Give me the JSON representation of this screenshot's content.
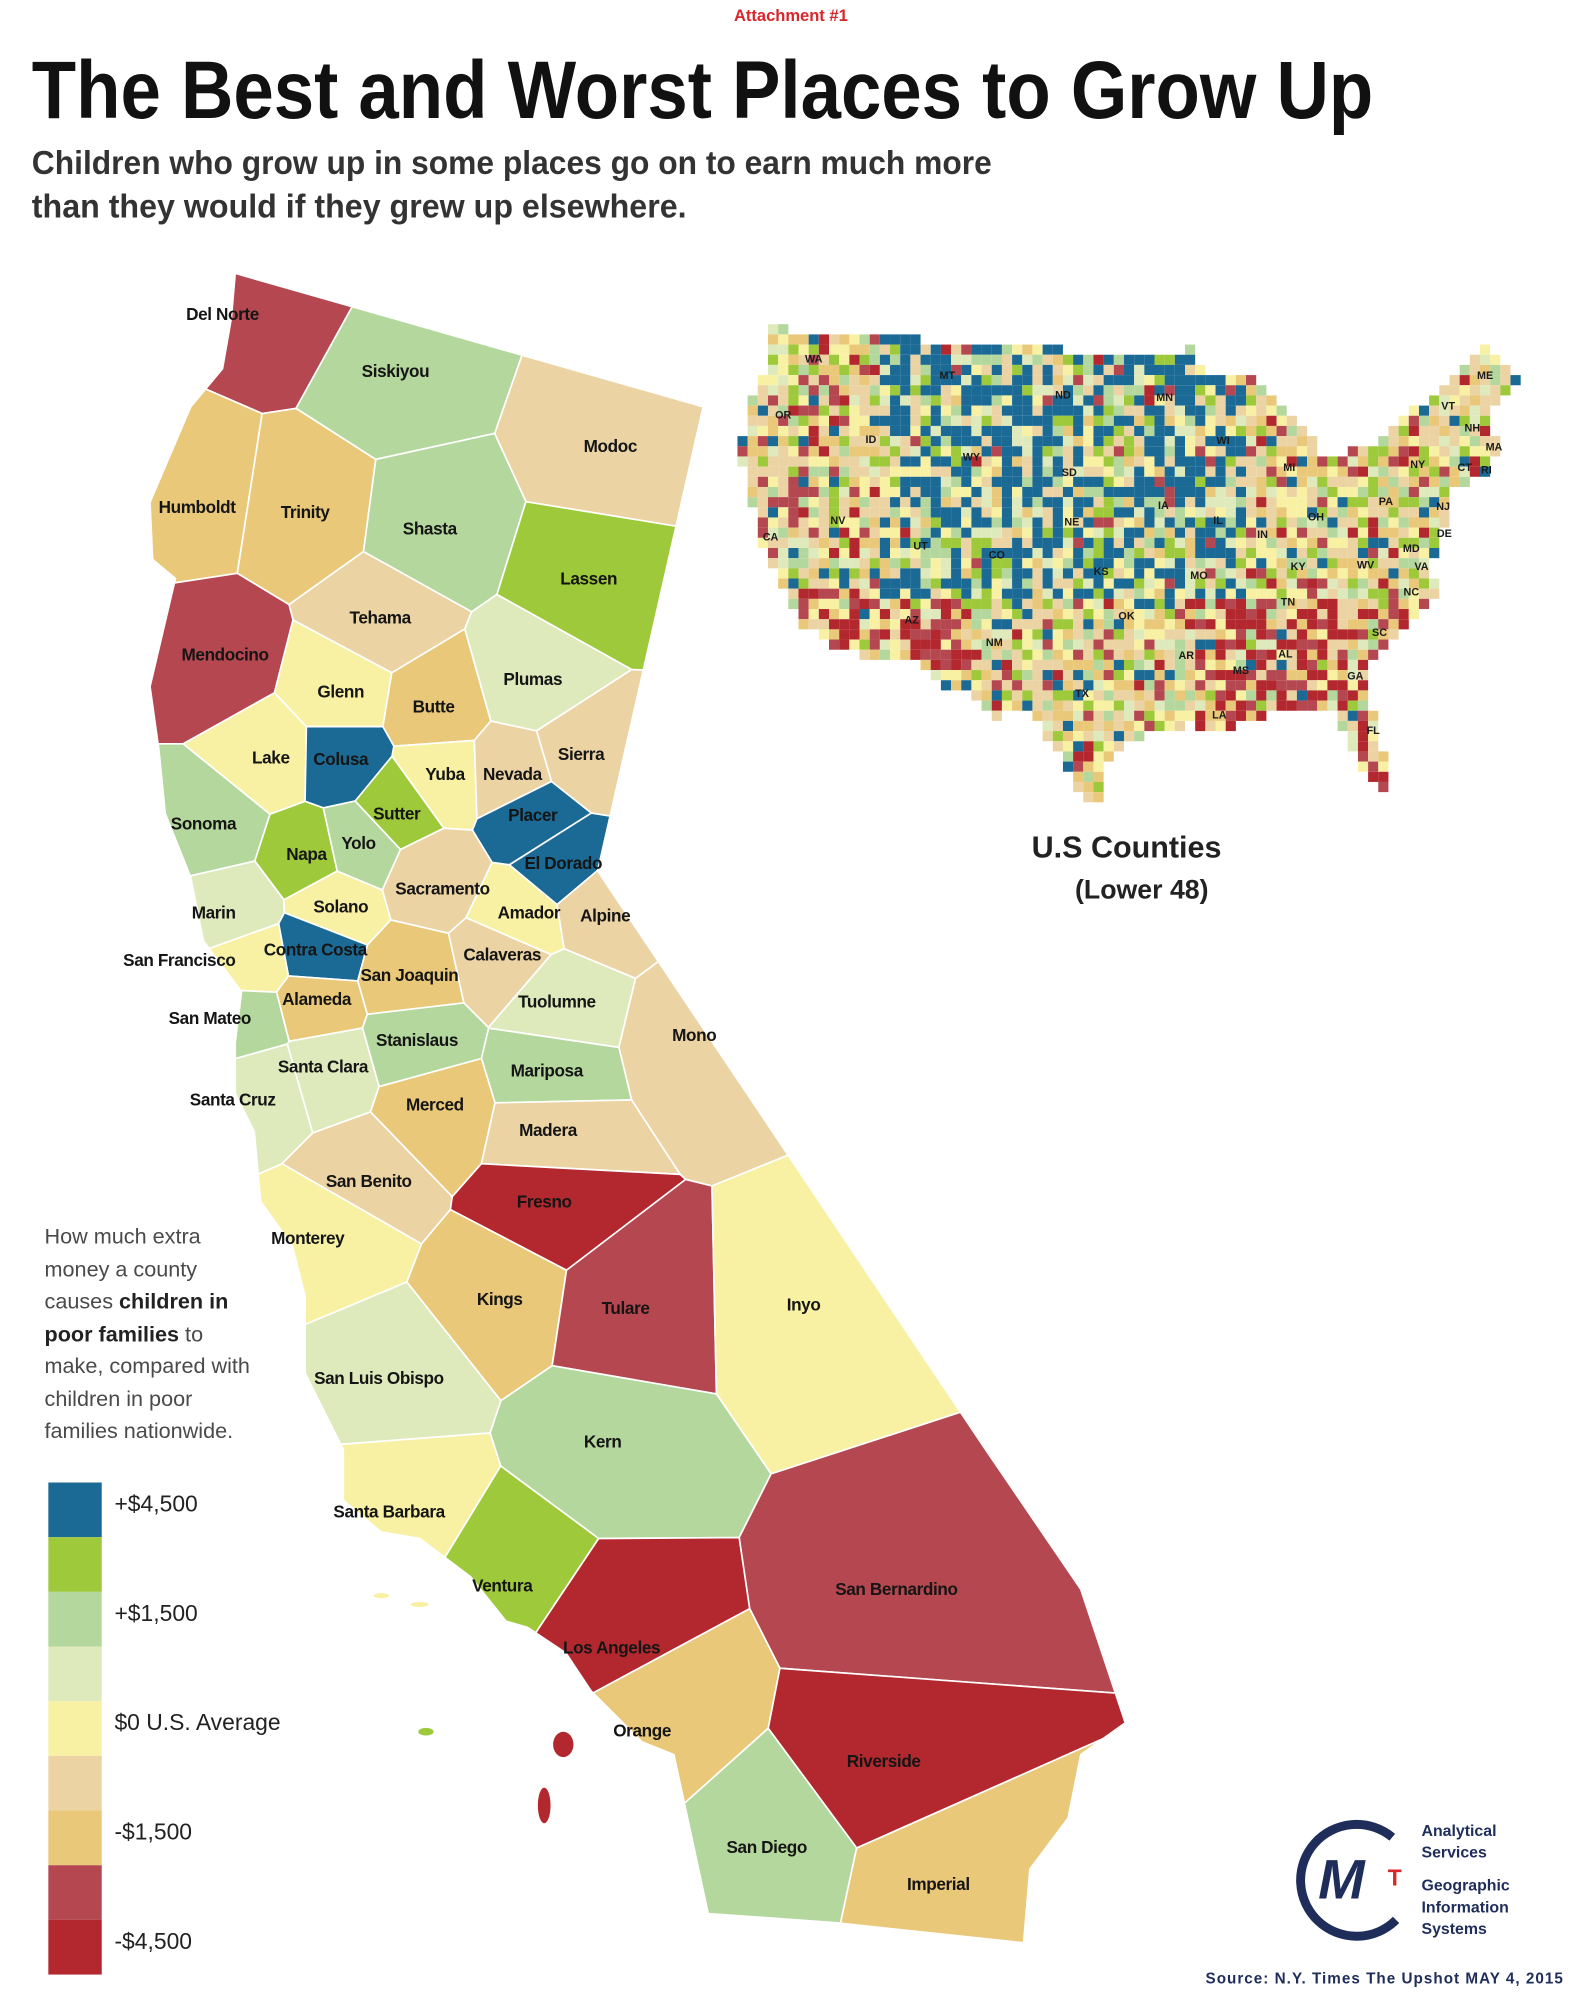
{
  "header": {
    "attachment": "Attachment #1",
    "title": "The Best and Worst Places to Grow Up",
    "subtitle": [
      "Children who grow up in some places go on to earn much more",
      "than they would if they grew up elsewhere."
    ]
  },
  "california": {
    "counties": [
      {
        "name": "Del Norte",
        "color": "#b4474f"
      },
      {
        "name": "Siskiyou",
        "color": "#b4d79d"
      },
      {
        "name": "Modoc",
        "color": "#ebd3a3"
      },
      {
        "name": "Humboldt",
        "color": "#eac879"
      },
      {
        "name": "Trinity",
        "color": "#eac879"
      },
      {
        "name": "Shasta",
        "color": "#b4d79d"
      },
      {
        "name": "Lassen",
        "color": "#9dc93b"
      },
      {
        "name": "Tehama",
        "color": "#ebd3a3"
      },
      {
        "name": "Mendocino",
        "color": "#b4474f"
      },
      {
        "name": "Plumas",
        "color": "#dfeabc"
      },
      {
        "name": "Glenn",
        "color": "#f8f1a3"
      },
      {
        "name": "Butte",
        "color": "#eac879"
      },
      {
        "name": "Lake",
        "color": "#f8f1a3"
      },
      {
        "name": "Colusa",
        "color": "#1b6a95"
      },
      {
        "name": "Sierra",
        "color": "#ebd3a3"
      },
      {
        "name": "Yuba",
        "color": "#f8f1a3"
      },
      {
        "name": "Nevada",
        "color": "#ebd3a3"
      },
      {
        "name": "Sutter",
        "color": "#9dc93b"
      },
      {
        "name": "Placer",
        "color": "#1b6a95"
      },
      {
        "name": "Sonoma",
        "color": "#b4d79d"
      },
      {
        "name": "Yolo",
        "color": "#b4d79d"
      },
      {
        "name": "Napa",
        "color": "#9dc93b"
      },
      {
        "name": "El Dorado",
        "color": "#1b6a95"
      },
      {
        "name": "Sacramento",
        "color": "#ebd3a3"
      },
      {
        "name": "Marin",
        "color": "#dfeabc"
      },
      {
        "name": "Solano",
        "color": "#f8f1a3"
      },
      {
        "name": "Amador",
        "color": "#f8f1a3"
      },
      {
        "name": "Alpine",
        "color": "#ebd3a3"
      },
      {
        "name": "Contra Costa",
        "color": "#1b6a95"
      },
      {
        "name": "San Francisco",
        "color": "#f8f1a3"
      },
      {
        "name": "San Joaquin",
        "color": "#eac879"
      },
      {
        "name": "Calaveras",
        "color": "#ebd3a3"
      },
      {
        "name": "Alameda",
        "color": "#eac879"
      },
      {
        "name": "San Mateo",
        "color": "#b4d79d"
      },
      {
        "name": "Tuolumne",
        "color": "#dfeabc"
      },
      {
        "name": "Stanislaus",
        "color": "#b4d79d"
      },
      {
        "name": "Mono",
        "color": "#ebd3a3"
      },
      {
        "name": "Santa Clara",
        "color": "#dfeabc"
      },
      {
        "name": "Mariposa",
        "color": "#b4d79d"
      },
      {
        "name": "Santa Cruz",
        "color": "#dfeabc"
      },
      {
        "name": "Merced",
        "color": "#eac879"
      },
      {
        "name": "Madera",
        "color": "#ebd3a3"
      },
      {
        "name": "San Benito",
        "color": "#ebd3a3"
      },
      {
        "name": "Fresno",
        "color": "#b3282e"
      },
      {
        "name": "Monterey",
        "color": "#f8f1a3"
      },
      {
        "name": "Kings",
        "color": "#eac879"
      },
      {
        "name": "Tulare",
        "color": "#b4474f"
      },
      {
        "name": "Inyo",
        "color": "#f8f1a3"
      },
      {
        "name": "San Luis Obispo",
        "color": "#dfeabc"
      },
      {
        "name": "Kern",
        "color": "#b4d79d"
      },
      {
        "name": "Santa Barbara",
        "color": "#f8f1a3"
      },
      {
        "name": "Ventura",
        "color": "#9dc93b"
      },
      {
        "name": "San Bernardino",
        "color": "#b4474f"
      },
      {
        "name": "Los Angeles",
        "color": "#b3282e"
      },
      {
        "name": "Orange",
        "color": "#eac879"
      },
      {
        "name": "Riverside",
        "color": "#b3282e"
      },
      {
        "name": "San Diego",
        "color": "#b4d79d"
      },
      {
        "name": "Imperial",
        "color": "#eac879"
      }
    ]
  },
  "inset": {
    "title": "U.S Counties",
    "subtitle": "(Lower 48)",
    "states": [
      "WA",
      "MT",
      "ND",
      "MN",
      "ME",
      "OR",
      "ID",
      "WY",
      "SD",
      "WI",
      "VT",
      "NH",
      "MA",
      "NY",
      "CT",
      "RI",
      "MI",
      "PA",
      "NJ",
      "DE",
      "MD",
      "IA",
      "NE",
      "NV",
      "IL",
      "IN",
      "OH",
      "CA",
      "UT",
      "CO",
      "KS",
      "MO",
      "WV",
      "VA",
      "KY",
      "NC",
      "TN",
      "AZ",
      "OK",
      "NM",
      "AR",
      "MS",
      "AL",
      "SC",
      "GA",
      "TX",
      "LA",
      "FL"
    ]
  },
  "legend": {
    "description": [
      "How much extra money a county causes ",
      "children in poor families",
      " to make, compared with children in poor families nationwide."
    ],
    "items": [
      {
        "label": "+$4,500",
        "color": "#1b6a95"
      },
      {
        "label": null,
        "color": "#9dc93b"
      },
      {
        "label": "+$1,500",
        "color": "#b4d79d"
      },
      {
        "label": null,
        "color": "#dfeabc"
      },
      {
        "label": "$0 U.S. Average",
        "color": "#f8f1a3"
      },
      {
        "label": null,
        "color": "#ebd3a3"
      },
      {
        "label": "-$1,500",
        "color": "#eac879"
      },
      {
        "label": null,
        "color": "#b4474f"
      },
      {
        "label": "-$4,500",
        "color": "#b3282e"
      }
    ]
  },
  "logo": {
    "mark": "M",
    "accent": "T",
    "lines": [
      "Analytical",
      "Services",
      "Geographic",
      "Information",
      "Systems"
    ]
  },
  "source": "Source: N.Y. Times The Upshot MAY 4, 2015"
}
